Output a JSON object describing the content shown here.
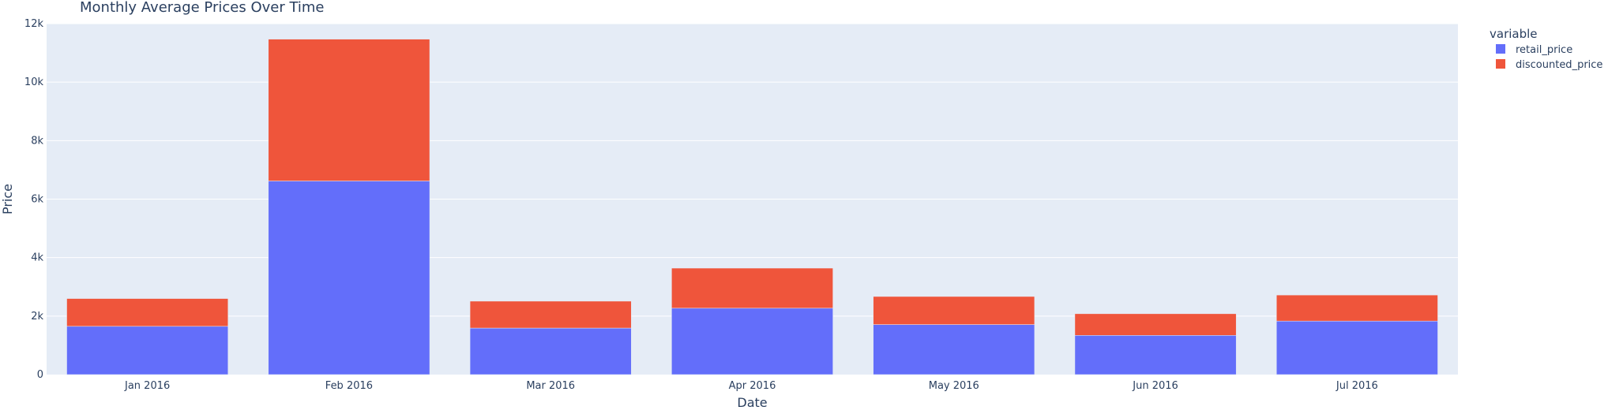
{
  "chart_data": {
    "type": "bar",
    "barmode": "stack",
    "title": "Monthly Average Prices Over Time",
    "xlabel": "Date",
    "ylabel": "Price",
    "ylim": [
      0,
      12000
    ],
    "yticks": [
      0,
      2000,
      4000,
      6000,
      8000,
      10000,
      12000
    ],
    "ytick_labels": [
      "0",
      "2k",
      "4k",
      "6k",
      "8k",
      "10k",
      "12k"
    ],
    "categories": [
      "2016-01",
      "2016-02",
      "2016-03",
      "2016-04",
      "2016-05",
      "2016-06",
      "2016-07"
    ],
    "xtick_labels": [
      "Jan 2016",
      "Feb 2016",
      "Mar 2016",
      "Apr 2016",
      "May 2016",
      "Jun 2016",
      "Jul 2016"
    ],
    "grid": true,
    "legend": {
      "title": "variable",
      "placement": "top-right"
    },
    "series": [
      {
        "name": "retail_price",
        "color": "#636efa",
        "values": [
          1650,
          6620,
          1590,
          2270,
          1710,
          1340,
          1830
        ]
      },
      {
        "name": "discounted_price",
        "color": "#ef553b",
        "values": [
          950,
          4850,
          920,
          1370,
          960,
          740,
          890
        ]
      }
    ],
    "colors": {
      "plot_background": "#e5ecf6",
      "gridline": "#ffffff",
      "text": "#2a3f5f"
    }
  }
}
